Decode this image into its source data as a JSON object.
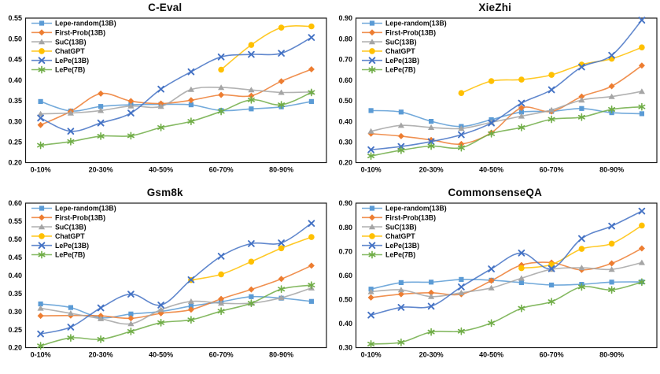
{
  "chart_data": [
    {
      "type": "line",
      "title": "C-Eval",
      "xlabel": "",
      "ylabel": "",
      "ylim": [
        0.2,
        0.55
      ],
      "ytick_step": 0.05,
      "x_tick_labels": [
        "0-10%",
        "20-30%",
        "40-50%",
        "60-70%",
        "80-90%"
      ],
      "n_points": 10,
      "grid": false,
      "legend_position": "top-left",
      "series": [
        {
          "name": "Lepe-random(13B)",
          "color": "#5B9BD5",
          "marker": "square",
          "start_index": 0,
          "values": [
            0.348,
            0.325,
            0.336,
            0.34,
            0.341,
            0.34,
            0.326,
            0.33,
            0.335,
            0.348
          ]
        },
        {
          "name": "First-Prob(13B)",
          "color": "#ED7D31",
          "marker": "diamond",
          "start_index": 0,
          "values": [
            0.291,
            0.324,
            0.367,
            0.349,
            0.343,
            0.351,
            0.364,
            0.362,
            0.397,
            0.426
          ]
        },
        {
          "name": "SuC(13B)",
          "color": "#A5A5A5",
          "marker": "triangle",
          "start_index": 0,
          "values": [
            0.318,
            0.32,
            0.326,
            0.337,
            0.336,
            0.377,
            0.382,
            0.376,
            0.37,
            0.371
          ]
        },
        {
          "name": "ChatGPT",
          "color": "#FFC000",
          "marker": "circle",
          "start_index": 6,
          "values": [
            0.425,
            0.485,
            0.527,
            0.53
          ]
        },
        {
          "name": "LePe(13B)",
          "color": "#4472C4",
          "marker": "x",
          "start_index": 0,
          "values": [
            0.308,
            0.276,
            0.296,
            0.32,
            0.378,
            0.42,
            0.456,
            0.462,
            0.465,
            0.503
          ]
        },
        {
          "name": "LePe(7B)",
          "color": "#70AD47",
          "marker": "asterisk",
          "start_index": 0,
          "values": [
            0.242,
            0.251,
            0.264,
            0.265,
            0.285,
            0.3,
            0.324,
            0.352,
            0.34,
            0.37
          ]
        }
      ]
    },
    {
      "type": "line",
      "title": "XieZhi",
      "xlabel": "",
      "ylabel": "",
      "ylim": [
        0.2,
        0.9
      ],
      "ytick_step": 0.1,
      "x_tick_labels": [
        "0-10%",
        "20-30%",
        "40-50%",
        "60-70%",
        "80-90%"
      ],
      "n_points": 10,
      "grid": false,
      "legend_position": "top-left",
      "series": [
        {
          "name": "Lepe-random(13B)",
          "color": "#5B9BD5",
          "marker": "square",
          "start_index": 0,
          "values": [
            0.452,
            0.445,
            0.4,
            0.375,
            0.408,
            0.445,
            0.448,
            0.462,
            0.442,
            0.437
          ]
        },
        {
          "name": "First-Prob(13B)",
          "color": "#ED7D31",
          "marker": "diamond",
          "start_index": 0,
          "values": [
            0.34,
            0.328,
            0.31,
            0.29,
            0.345,
            0.465,
            0.448,
            0.52,
            0.57,
            0.67
          ]
        },
        {
          "name": "SuC(13B)",
          "color": "#A5A5A5",
          "marker": "triangle",
          "start_index": 0,
          "values": [
            0.352,
            0.38,
            0.37,
            0.365,
            0.395,
            0.425,
            0.455,
            0.503,
            0.52,
            0.545
          ]
        },
        {
          "name": "ChatGPT",
          "color": "#FFC000",
          "marker": "circle",
          "start_index": 3,
          "values": [
            0.537,
            0.595,
            0.602,
            0.625,
            0.675,
            0.703,
            0.758
          ]
        },
        {
          "name": "LePe(13B)",
          "color": "#4472C4",
          "marker": "x",
          "start_index": 0,
          "values": [
            0.262,
            0.278,
            0.302,
            0.335,
            0.392,
            0.488,
            0.553,
            0.663,
            0.72,
            0.89
          ]
        },
        {
          "name": "LePe(7B)",
          "color": "#70AD47",
          "marker": "asterisk",
          "start_index": 0,
          "values": [
            0.232,
            0.26,
            0.28,
            0.272,
            0.34,
            0.37,
            0.41,
            0.42,
            0.458,
            0.47
          ]
        }
      ]
    },
    {
      "type": "line",
      "title": "Gsm8k",
      "xlabel": "",
      "ylabel": "",
      "ylim": [
        0.2,
        0.6
      ],
      "ytick_step": 0.05,
      "x_tick_labels": [
        "0-10%",
        "20-30%",
        "40-50%",
        "60-70%",
        "80-90%"
      ],
      "n_points": 10,
      "grid": false,
      "legend_position": "top-left",
      "series": [
        {
          "name": "Lepe-random(13B)",
          "color": "#5B9BD5",
          "marker": "square",
          "start_index": 0,
          "values": [
            0.321,
            0.311,
            0.283,
            0.293,
            0.3,
            0.315,
            0.327,
            0.341,
            0.337,
            0.328
          ]
        },
        {
          "name": "First-Prob(13B)",
          "color": "#ED7D31",
          "marker": "diamond",
          "start_index": 0,
          "values": [
            0.288,
            0.289,
            0.288,
            0.281,
            0.295,
            0.305,
            0.335,
            0.361,
            0.39,
            0.427
          ]
        },
        {
          "name": "SuC(13B)",
          "color": "#A5A5A5",
          "marker": "triangle",
          "start_index": 0,
          "values": [
            0.309,
            0.295,
            0.28,
            0.266,
            0.305,
            0.328,
            0.323,
            0.323,
            0.338,
            0.365
          ]
        },
        {
          "name": "ChatGPT",
          "color": "#FFC000",
          "marker": "circle",
          "start_index": 5,
          "values": [
            0.387,
            0.403,
            0.438,
            0.475,
            0.506
          ]
        },
        {
          "name": "LePe(13B)",
          "color": "#4472C4",
          "marker": "x",
          "start_index": 0,
          "values": [
            0.238,
            0.257,
            0.31,
            0.348,
            0.318,
            0.388,
            0.453,
            0.488,
            0.49,
            0.544
          ]
        },
        {
          "name": "LePe(7B)",
          "color": "#70AD47",
          "marker": "asterisk",
          "start_index": 0,
          "values": [
            0.205,
            0.227,
            0.223,
            0.245,
            0.269,
            0.277,
            0.301,
            0.323,
            0.362,
            0.373
          ]
        }
      ]
    },
    {
      "type": "line",
      "title": "CommonsenseQA",
      "xlabel": "",
      "ylabel": "",
      "ylim": [
        0.3,
        0.9
      ],
      "ytick_step": 0.1,
      "x_tick_labels": [
        "0-10%",
        "20-30%",
        "40-50%",
        "60-70%",
        "80-90%"
      ],
      "n_points": 10,
      "grid": false,
      "legend_position": "top-left",
      "series": [
        {
          "name": "Lepe-random(13B)",
          "color": "#5B9BD5",
          "marker": "square",
          "start_index": 0,
          "values": [
            0.543,
            0.57,
            0.572,
            0.583,
            0.58,
            0.57,
            0.56,
            0.563,
            0.572,
            0.573
          ]
        },
        {
          "name": "First-Prob(13B)",
          "color": "#ED7D31",
          "marker": "diamond",
          "start_index": 0,
          "values": [
            0.508,
            0.522,
            0.528,
            0.522,
            0.578,
            0.643,
            0.653,
            0.623,
            0.65,
            0.712
          ]
        },
        {
          "name": "SuC(13B)",
          "color": "#A5A5A5",
          "marker": "triangle",
          "start_index": 0,
          "values": [
            0.532,
            0.54,
            0.512,
            0.528,
            0.548,
            0.588,
            0.625,
            0.632,
            0.625,
            0.653
          ]
        },
        {
          "name": "ChatGPT",
          "color": "#FFC000",
          "marker": "circle",
          "start_index": 5,
          "values": [
            0.63,
            0.645,
            0.71,
            0.732,
            0.807
          ]
        },
        {
          "name": "LePe(13B)",
          "color": "#4472C4",
          "marker": "x",
          "start_index": 0,
          "values": [
            0.435,
            0.467,
            0.472,
            0.552,
            0.627,
            0.693,
            0.628,
            0.753,
            0.805,
            0.867
          ]
        },
        {
          "name": "LePe(7B)",
          "color": "#70AD47",
          "marker": "asterisk",
          "start_index": 0,
          "values": [
            0.315,
            0.322,
            0.365,
            0.368,
            0.402,
            0.463,
            0.491,
            0.552,
            0.54,
            0.572
          ]
        }
      ]
    }
  ]
}
